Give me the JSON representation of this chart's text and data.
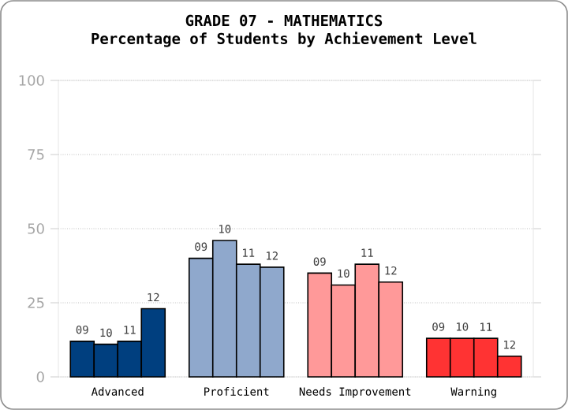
{
  "chart_data": {
    "type": "bar",
    "title": "GRADE 07 - MATHEMATICS",
    "subtitle": "Percentage of Students by Achievement Level",
    "categories": [
      "Advanced",
      "Proficient",
      "Needs Improvement",
      "Warning"
    ],
    "series": [
      {
        "name": "09",
        "colors": [
          "#003f7f",
          "#8fa8cc",
          "#ff9999",
          "#ff3333"
        ],
        "values": [
          12,
          40,
          35,
          13
        ]
      },
      {
        "name": "10",
        "colors": [
          "#003f7f",
          "#8fa8cc",
          "#ff9999",
          "#ff3333"
        ],
        "values": [
          11,
          46,
          31,
          13
        ]
      },
      {
        "name": "11",
        "colors": [
          "#003f7f",
          "#8fa8cc",
          "#ff9999",
          "#ff3333"
        ],
        "values": [
          12,
          38,
          38,
          13
        ]
      },
      {
        "name": "12",
        "colors": [
          "#003f7f",
          "#8fa8cc",
          "#ff9999",
          "#ff3333"
        ],
        "values": [
          23,
          37,
          32,
          7
        ]
      }
    ],
    "ylim": [
      0,
      100
    ],
    "yticks": [
      0,
      25,
      50,
      75,
      100
    ],
    "grid": "y"
  }
}
